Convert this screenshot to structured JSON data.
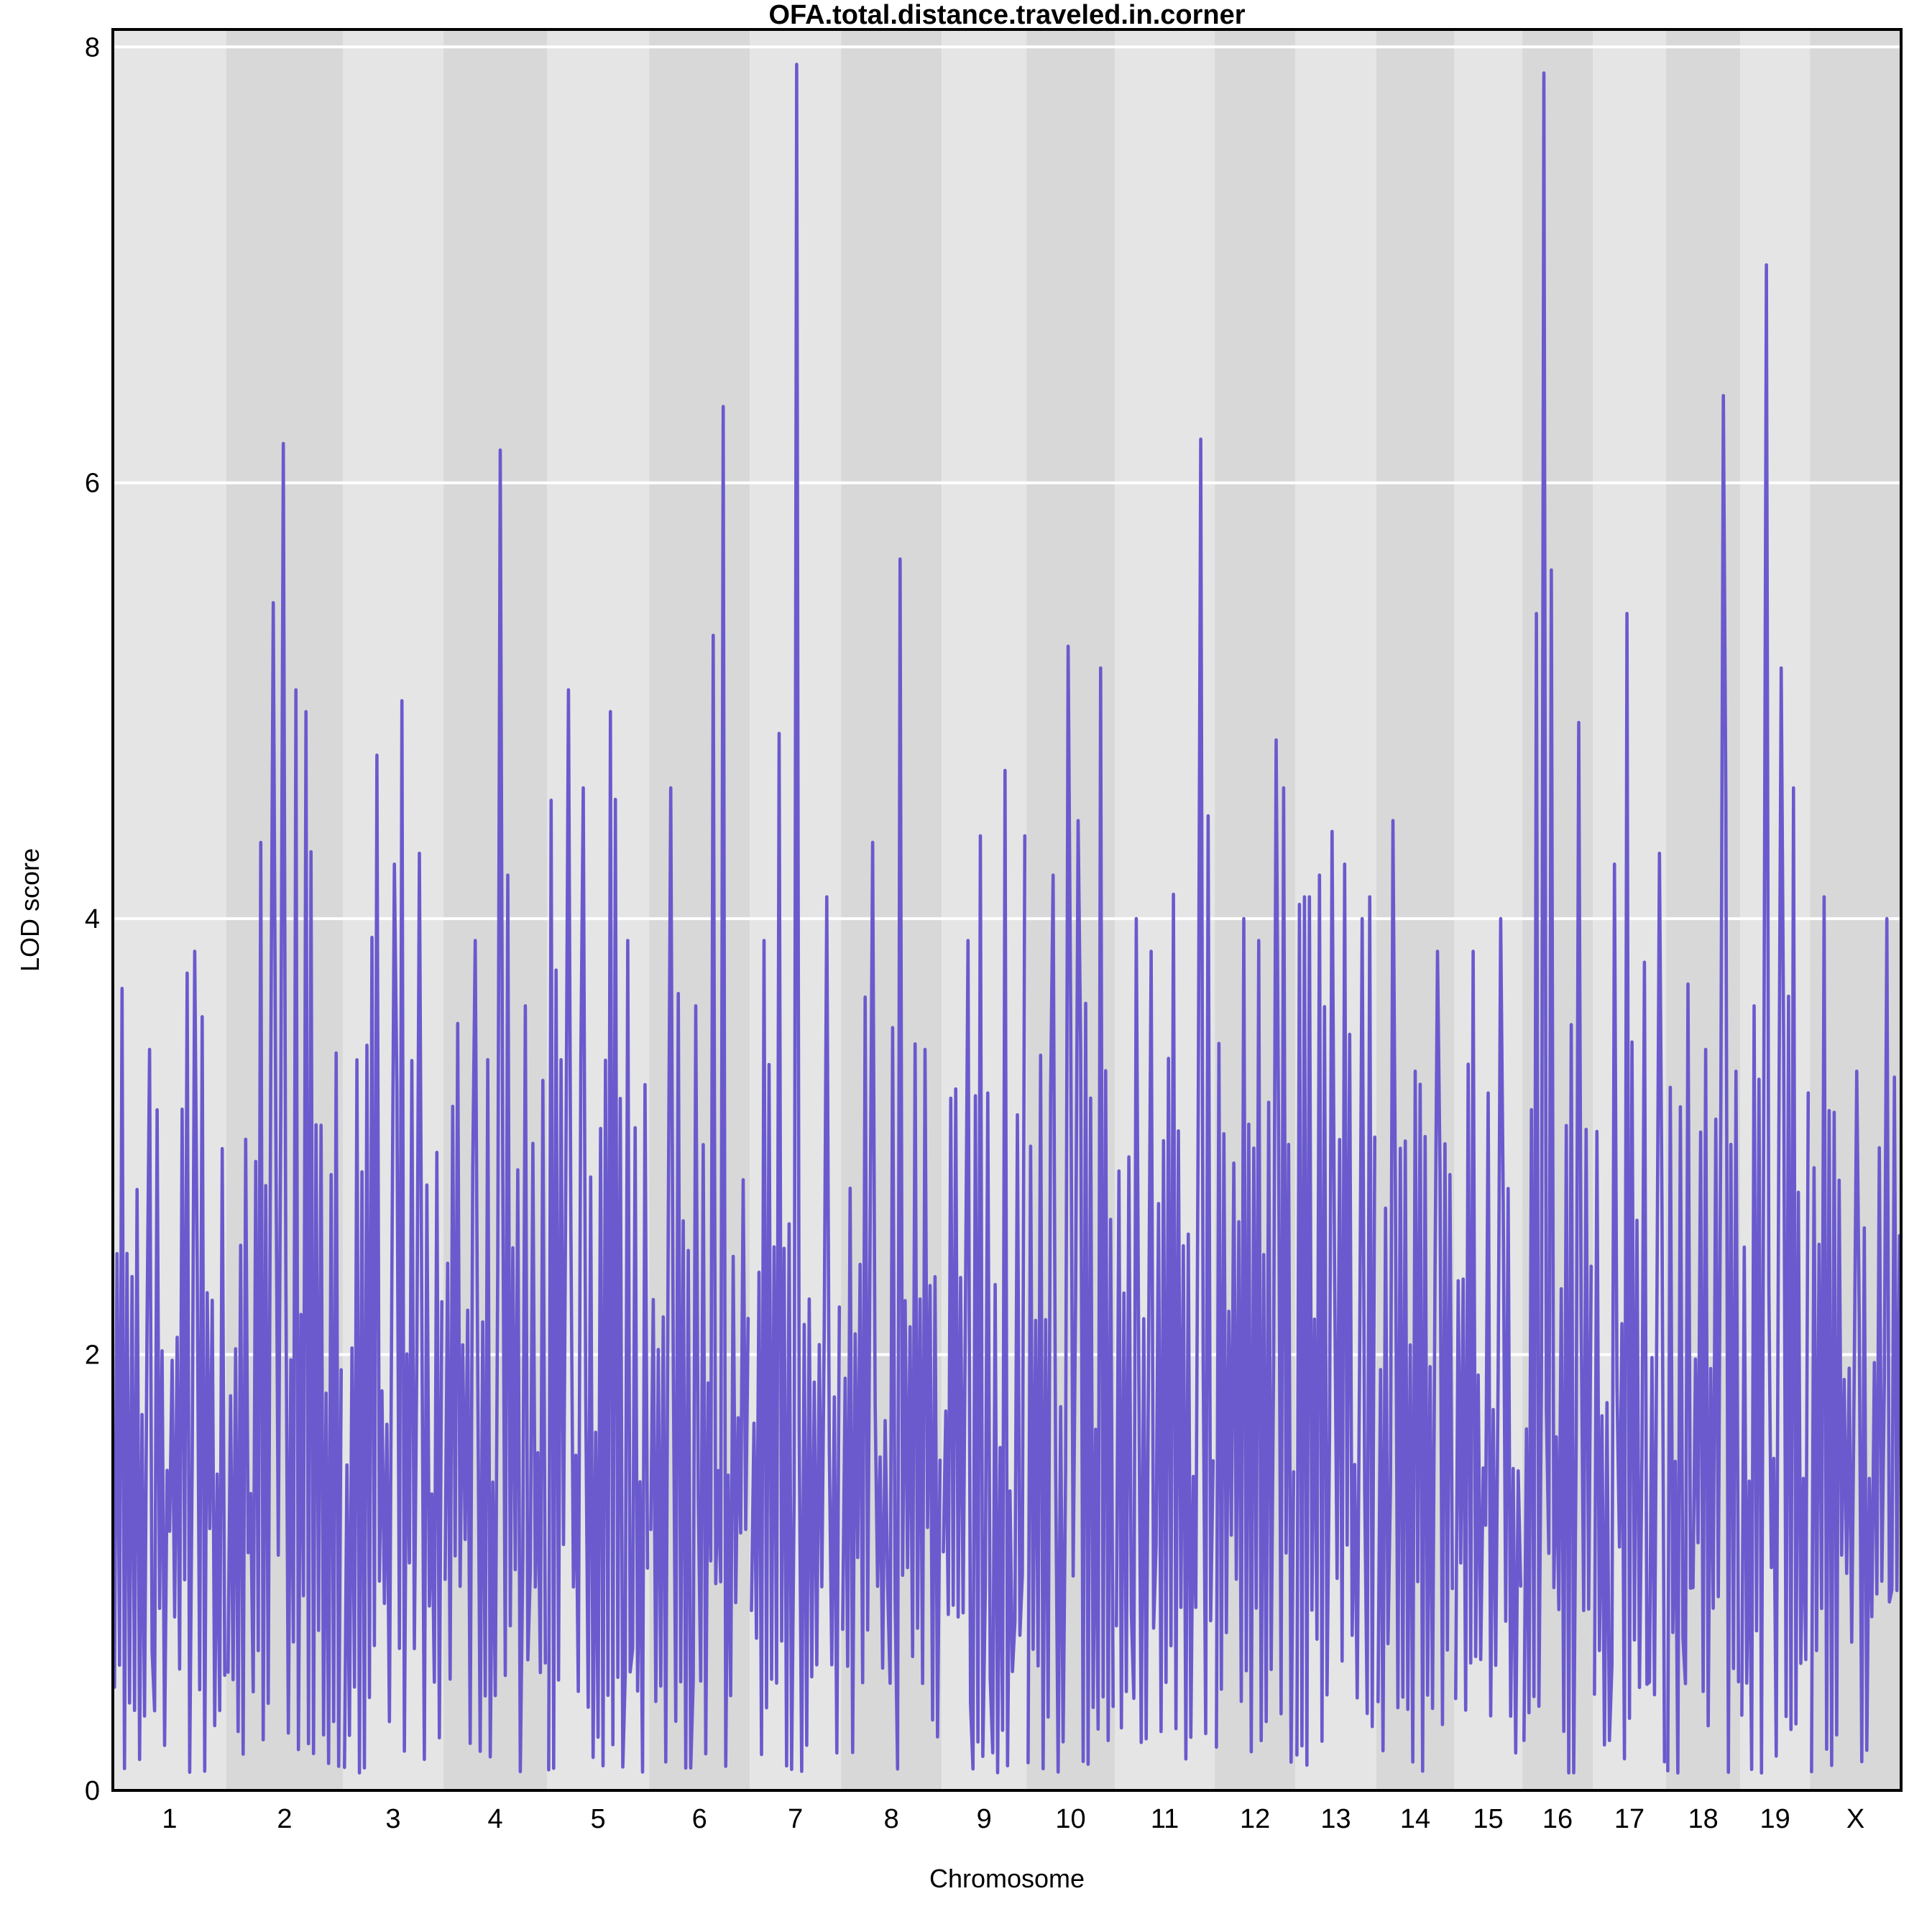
{
  "title": "OFA.total.distance.traveled.in.corner",
  "chart_data": {
    "type": "line",
    "title": "OFA.total.distance.traveled.in.corner",
    "xlabel": "Chromosome",
    "ylabel": "LOD score",
    "ylim": [
      0,
      8.08
    ],
    "yticks": [
      0,
      2,
      4,
      6,
      8
    ],
    "grid": "white horizontal gridlines at yticks, alternating gray chromosome bands",
    "legend": "none",
    "categories": [
      "1",
      "2",
      "3",
      "4",
      "5",
      "6",
      "7",
      "8",
      "9",
      "10",
      "11",
      "12",
      "13",
      "14",
      "15",
      "16",
      "17",
      "18",
      "19",
      "X"
    ],
    "series": [
      {
        "name": "LOD score",
        "color": "#6A5ACD",
        "max_lod_by_chromosome": [
          3.85,
          6.18,
          5.0,
          6.15,
          5.05,
          6.35,
          7.92,
          5.65,
          4.68,
          5.25,
          6.2,
          4.82,
          4.4,
          4.45,
          4.0,
          7.88,
          5.4,
          6.4,
          7.0,
          4.1
        ]
      }
    ],
    "chromosomes": [
      {
        "label": "1",
        "width_frac": 0.0635,
        "max_lod": 3.85,
        "peak_pos": 0.72,
        "secondary_peaks": [
          [
            0.07,
            3.68
          ],
          [
            0.32,
            3.4
          ],
          [
            0.65,
            3.75
          ]
        ],
        "seed": 11
      },
      {
        "label": "2",
        "width_frac": 0.0651,
        "max_lod": 6.18,
        "peak_pos": 0.48,
        "secondary_peaks": [
          [
            0.4,
            5.45
          ],
          [
            0.6,
            5.05
          ],
          [
            0.68,
            4.95
          ],
          [
            0.28,
            4.35
          ]
        ],
        "seed": 97
      },
      {
        "label": "3",
        "width_frac": 0.0563,
        "max_lod": 5.0,
        "peak_pos": 0.6,
        "secondary_peaks": [
          [
            0.33,
            4.75
          ],
          [
            0.78,
            4.3
          ],
          [
            0.5,
            4.25
          ]
        ],
        "seed": 23
      },
      {
        "label": "4",
        "width_frac": 0.0579,
        "max_lod": 6.15,
        "peak_pos": 0.55,
        "secondary_peaks": [
          [
            0.62,
            4.2
          ],
          [
            0.3,
            3.9
          ],
          [
            0.8,
            3.6
          ]
        ],
        "seed": 41
      },
      {
        "label": "5",
        "width_frac": 0.0571,
        "max_lod": 5.05,
        "peak_pos": 0.19,
        "secondary_peaks": [
          [
            0.62,
            4.95
          ],
          [
            0.35,
            4.6
          ],
          [
            0.8,
            3.9
          ]
        ],
        "seed": 53
      },
      {
        "label": "6",
        "width_frac": 0.0563,
        "max_lod": 6.35,
        "peak_pos": 0.74,
        "secondary_peaks": [
          [
            0.63,
            5.3
          ],
          [
            0.2,
            4.6
          ],
          [
            0.45,
            3.6
          ]
        ],
        "seed": 67
      },
      {
        "label": "7",
        "width_frac": 0.051,
        "max_lod": 7.92,
        "peak_pos": 0.51,
        "secondary_peaks": [
          [
            0.3,
            4.85
          ],
          [
            0.85,
            4.1
          ],
          [
            0.15,
            3.9
          ]
        ],
        "seed": 71
      },
      {
        "label": "8",
        "width_frac": 0.0563,
        "max_lod": 5.65,
        "peak_pos": 0.6,
        "secondary_peaks": [
          [
            0.3,
            4.35
          ],
          [
            0.5,
            3.5
          ],
          [
            0.85,
            3.4
          ]
        ],
        "seed": 83
      },
      {
        "label": "9",
        "width_frac": 0.0474,
        "max_lod": 4.68,
        "peak_pos": 0.76,
        "secondary_peaks": [
          [
            0.3,
            3.9
          ],
          [
            0.55,
            3.2
          ],
          [
            0.9,
            3.1
          ]
        ],
        "seed": 89
      },
      {
        "label": "10",
        "width_frac": 0.0494,
        "max_lod": 5.25,
        "peak_pos": 0.48,
        "secondary_peaks": [
          [
            0.85,
            5.15
          ],
          [
            0.6,
            4.45
          ],
          [
            0.3,
            4.2
          ]
        ],
        "seed": 101
      },
      {
        "label": "11",
        "width_frac": 0.0559,
        "max_lod": 6.2,
        "peak_pos": 0.88,
        "secondary_peaks": [
          [
            0.2,
            4.0
          ],
          [
            0.35,
            3.85
          ],
          [
            0.6,
            3.4
          ]
        ],
        "seed": 113
      },
      {
        "label": "12",
        "width_frac": 0.045,
        "max_lod": 4.82,
        "peak_pos": 0.79,
        "secondary_peaks": [
          [
            0.87,
            4.6
          ],
          [
            0.35,
            4.0
          ],
          [
            0.55,
            3.9
          ]
        ],
        "seed": 127
      },
      {
        "label": "13",
        "width_frac": 0.0454,
        "max_lod": 4.4,
        "peak_pos": 0.45,
        "secondary_peaks": [
          [
            0.3,
            4.2
          ],
          [
            0.62,
            4.25
          ],
          [
            0.85,
            4.0
          ]
        ],
        "seed": 131
      },
      {
        "label": "14",
        "width_frac": 0.0434,
        "max_lod": 4.45,
        "peak_pos": 0.2,
        "secondary_peaks": [
          [
            0.79,
            3.85
          ],
          [
            0.5,
            3.3
          ]
        ],
        "seed": 139
      },
      {
        "label": "15",
        "width_frac": 0.0382,
        "max_lod": 4.0,
        "peak_pos": 0.7,
        "secondary_peaks": [
          [
            0.27,
            3.85
          ],
          [
            0.5,
            3.2
          ]
        ],
        "seed": 149
      },
      {
        "label": "16",
        "width_frac": 0.0394,
        "max_lod": 7.88,
        "peak_pos": 0.3,
        "secondary_peaks": [
          [
            0.42,
            5.6
          ],
          [
            0.2,
            5.4
          ],
          [
            0.8,
            4.9
          ]
        ],
        "seed": 151
      },
      {
        "label": "17",
        "width_frac": 0.041,
        "max_lod": 5.4,
        "peak_pos": 0.47,
        "secondary_peaks": [
          [
            0.3,
            4.25
          ],
          [
            0.92,
            4.3
          ],
          [
            0.7,
            3.8
          ]
        ],
        "seed": 163
      },
      {
        "label": "18",
        "width_frac": 0.0414,
        "max_lod": 6.4,
        "peak_pos": 0.8,
        "secondary_peaks": [
          [
            0.3,
            3.7
          ],
          [
            0.55,
            3.4
          ],
          [
            0.95,
            3.3
          ]
        ],
        "seed": 173
      },
      {
        "label": "19",
        "width_frac": 0.039,
        "max_lod": 7.0,
        "peak_pos": 0.38,
        "secondary_peaks": [
          [
            0.6,
            5.15
          ],
          [
            0.78,
            4.6
          ],
          [
            0.2,
            3.6
          ]
        ],
        "seed": 181
      },
      {
        "label": "X",
        "width_frac": 0.051,
        "max_lod": 4.1,
        "peak_pos": 0.15,
        "secondary_peaks": [
          [
            0.85,
            4.0
          ],
          [
            0.5,
            3.3
          ],
          [
            0.3,
            2.8
          ]
        ],
        "seed": 191
      }
    ],
    "style": {
      "line_color": "#6A5ACD",
      "band_light": "#E5E5E5",
      "band_dark": "#D8D8D8",
      "gridline_color": "#FFFFFF",
      "border_color": "#000000",
      "background": "#FFFFFF"
    }
  }
}
